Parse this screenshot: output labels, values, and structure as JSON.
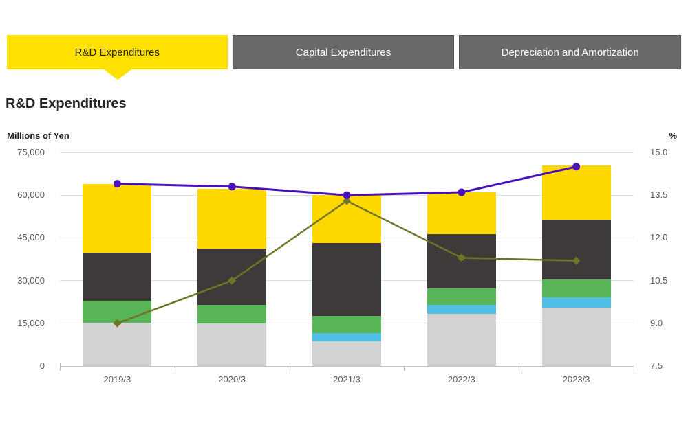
{
  "tabs": [
    {
      "label": "R&D Expenditures",
      "active": true
    },
    {
      "label": "Capital Expenditures",
      "active": false
    },
    {
      "label": "Depreciation and Amortization",
      "active": false
    }
  ],
  "heading": "R&D Expenditures",
  "colors": {
    "active_tab": "#ffe100",
    "inactive_tab": "#696969",
    "segment_gray": "#d2d2d2",
    "segment_cyan": "#52c0e4",
    "segment_green": "#57b457",
    "segment_dark": "#3e3a39",
    "segment_yellow": "#ffd800",
    "line_purple": "#4a10c0",
    "line_olive": "#6f7426"
  },
  "chart_data": {
    "type": "bar",
    "subtype": "stacked-bar-with-lines",
    "categories": [
      "2019/3",
      "2020/3",
      "2021/3",
      "2022/3",
      "2023/3"
    ],
    "bar_series": [
      {
        "name": "segment-gray",
        "color": "#d2d2d2",
        "values": [
          15300,
          15000,
          8700,
          18400,
          20500
        ]
      },
      {
        "name": "segment-cyan",
        "color": "#52c0e4",
        "values": [
          0,
          0,
          2800,
          3100,
          3500
        ]
      },
      {
        "name": "segment-green",
        "color": "#57b457",
        "values": [
          7600,
          6400,
          6000,
          5700,
          6400
        ]
      },
      {
        "name": "segment-dark",
        "color": "#3e3a39",
        "values": [
          17000,
          19800,
          25600,
          19200,
          20900
        ]
      },
      {
        "name": "segment-yellow",
        "color": "#ffd800",
        "values": [
          24100,
          21000,
          17000,
          14500,
          19200
        ]
      }
    ],
    "bar_totals": [
      64000,
      62200,
      60100,
      60900,
      70500
    ],
    "line_series": [
      {
        "name": "line-olive",
        "color": "#6f7426",
        "marker": "diamond",
        "axis": "right",
        "values": [
          9.0,
          10.5,
          13.3,
          11.3,
          11.2
        ]
      },
      {
        "name": "line-purple",
        "color": "#4a10c0",
        "marker": "circle",
        "axis": "right",
        "values": [
          13.9,
          13.8,
          13.5,
          13.6,
          14.5
        ]
      }
    ],
    "left_axis": {
      "title": "Millions of Yen",
      "min": 0,
      "max": 75000,
      "tick_labels": [
        "0",
        "15,000",
        "30,000",
        "45,000",
        "60,000",
        "75,000"
      ]
    },
    "right_axis": {
      "title": "%",
      "min": 7.5,
      "max": 15.0,
      "tick_labels": [
        "7.5",
        "9.0",
        "10.5",
        "12.0",
        "13.5",
        "15.0"
      ]
    },
    "grid": true,
    "legend": "none"
  }
}
